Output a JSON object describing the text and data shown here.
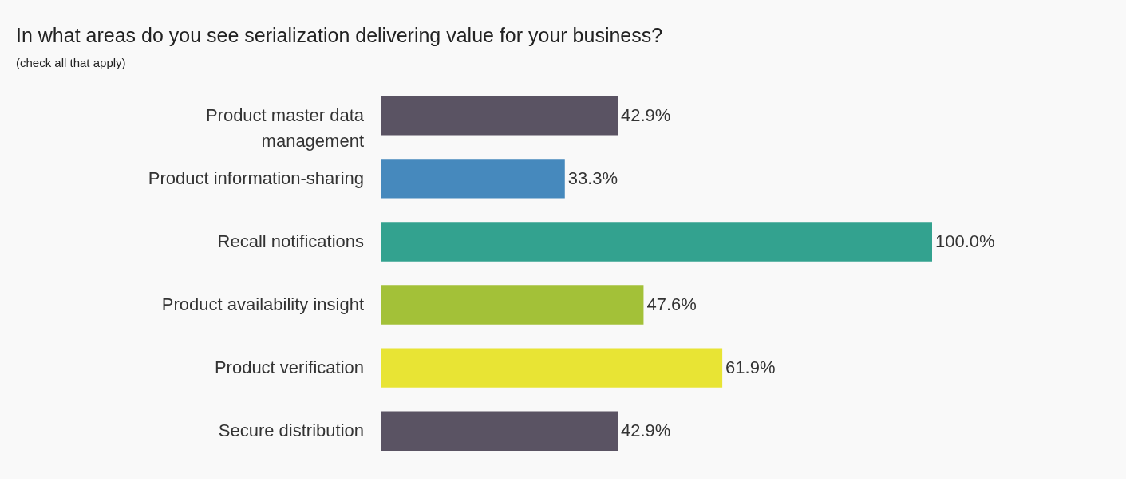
{
  "chart_data": {
    "type": "bar",
    "orientation": "horizontal",
    "title": "In what areas do you see serialization delivering value for your business?",
    "subtitle": "(check all that apply)",
    "categories": [
      "Product master data management",
      "Product information-sharing",
      "Recall notifications",
      "Product availability insight",
      "Product verification",
      "Secure distribution"
    ],
    "values": [
      42.9,
      33.3,
      100.0,
      47.6,
      61.9,
      42.9
    ],
    "colors": [
      "#5a5363",
      "#4689bd",
      "#33a28f",
      "#a3c138",
      "#e8e434",
      "#5a5363"
    ],
    "value_labels": [
      "42.9%",
      "33.3%",
      "100.0%",
      "47.6%",
      "61.9%",
      "42.9%"
    ]
  }
}
